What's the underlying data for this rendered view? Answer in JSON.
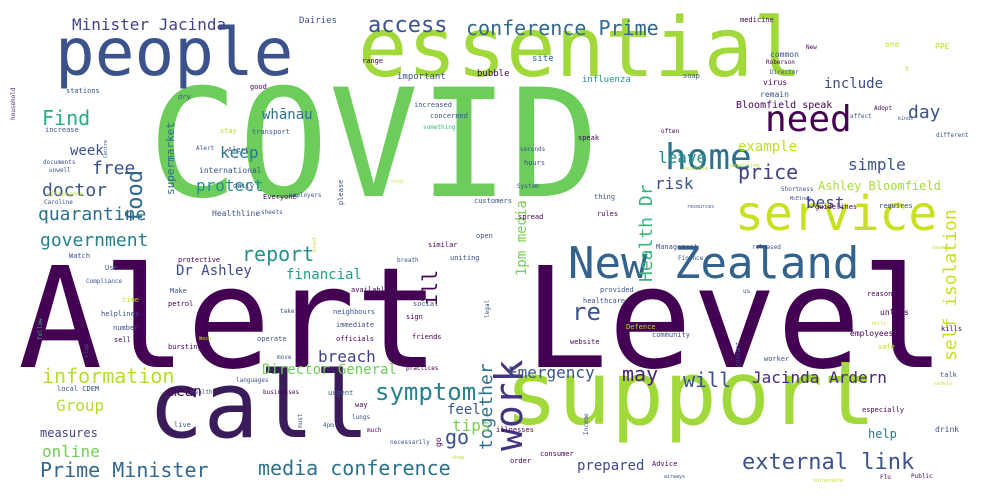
{
  "background": "#ffffff",
  "words": [
    {
      "text": "Alert Level",
      "color": "#440154",
      "rot": 0
    },
    {
      "text": "COVID",
      "color": "#6ccd5a",
      "rot": 0
    },
    {
      "text": "support",
      "color": "#a2d93a",
      "rot": 0
    },
    {
      "text": "essential",
      "color": "#a2d93a",
      "rot": 0
    },
    {
      "text": "call",
      "color": "#3b1c5a",
      "rot": 0
    },
    {
      "text": "people",
      "color": "#3b528b",
      "rot": 0
    },
    {
      "text": "New Zealand",
      "color": "#33638d",
      "rot": 0
    },
    {
      "text": "service",
      "color": "#c8e020",
      "rot": 0
    },
    {
      "text": "home",
      "color": "#2c728e",
      "rot": 0
    },
    {
      "text": "need",
      "color": "#440154",
      "rot": 0
    },
    {
      "text": "work",
      "color": "#46337e",
      "rot": -90
    },
    {
      "text": "symptom",
      "color": "#26828e",
      "rot": 0
    },
    {
      "text": "external link",
      "color": "#3b528b",
      "rot": 0
    },
    {
      "text": "media conference",
      "color": "#2c728e",
      "rot": 0
    },
    {
      "text": "Prime Minister",
      "color": "#31688e",
      "rot": 0
    },
    {
      "text": "information",
      "color": "#b5de2b",
      "rot": 0
    },
    {
      "text": "conference Prime",
      "color": "#31688e",
      "rot": 0
    },
    {
      "text": "access",
      "color": "#3b528b",
      "rot": 0
    },
    {
      "text": "Minister Jacinda",
      "color": "#414487",
      "rot": 0
    },
    {
      "text": "quarantine",
      "color": "#2c728e",
      "rot": 0
    },
    {
      "text": "government",
      "color": "#277f8e",
      "rot": 0
    },
    {
      "text": "doctor",
      "color": "#3b528b",
      "rot": 0
    },
    {
      "text": "Find",
      "color": "#27ad81",
      "rot": 0
    },
    {
      "text": "report",
      "color": "#21918c",
      "rot": 0
    },
    {
      "text": "price",
      "color": "#414487",
      "rot": 0
    },
    {
      "text": "free",
      "color": "#3b528b",
      "rot": 0
    },
    {
      "text": "food",
      "color": "#31688e",
      "rot": -90
    },
    {
      "text": "self isolation",
      "color": "#c8e020",
      "rot": -90
    },
    {
      "text": "Health Dr",
      "color": "#35b779",
      "rot": -90
    },
    {
      "text": "day",
      "color": "#3b528b",
      "rot": 0
    },
    {
      "text": "include",
      "color": "#3e4989",
      "rot": 0
    },
    {
      "text": "whānau",
      "color": "#2c728e",
      "rot": 0
    },
    {
      "text": "Bloomfield speak",
      "color": "#440154",
      "rot": 0
    },
    {
      "text": "keep",
      "color": "#2a788e",
      "rot": 0
    },
    {
      "text": "protect",
      "color": "#21918c",
      "rot": 0
    },
    {
      "text": "week",
      "color": "#3b528b",
      "rot": 0
    },
    {
      "text": "financial",
      "color": "#1fa187",
      "rot": 0
    },
    {
      "text": "Dr Ashley",
      "color": "#3e4a89",
      "rot": 0
    },
    {
      "text": "1pm media",
      "color": "#7ad151",
      "rot": -90
    },
    {
      "text": "leave",
      "color": "#21918c",
      "rot": 0
    },
    {
      "text": "risk",
      "color": "#3b528b",
      "rot": 0
    },
    {
      "text": "simple",
      "color": "#3b528b",
      "rot": 0
    },
    {
      "text": "example",
      "color": "#bddf26",
      "rot": 0
    },
    {
      "text": "best",
      "color": "#414487",
      "rot": 0
    },
    {
      "text": "Ashley Bloomfield",
      "color": "#a5db36",
      "rot": 0
    },
    {
      "text": "breach",
      "color": "#414487",
      "rot": 0
    },
    {
      "text": "together",
      "color": "#2c728e",
      "rot": -90
    },
    {
      "text": "re",
      "color": "#3b528b",
      "rot": 0
    },
    {
      "text": "ill",
      "color": "#440154",
      "rot": -90
    },
    {
      "text": "Director General",
      "color": "#6ece58",
      "rot": 0
    },
    {
      "text": "Emergency",
      "color": "#3b528b",
      "rot": 0
    },
    {
      "text": "may",
      "color": "#482173",
      "rot": 0
    },
    {
      "text": "will",
      "color": "#3b528b",
      "rot": 0
    },
    {
      "text": "Jacinda Ardern",
      "color": "#482878",
      "rot": 0
    },
    {
      "text": "Group",
      "color": "#b5de2b",
      "rot": 0
    },
    {
      "text": "mean",
      "color": "#440154",
      "rot": 0
    },
    {
      "text": "tips",
      "color": "#7ad151",
      "rot": 0
    },
    {
      "text": "feel",
      "color": "#3b528b",
      "rot": 0
    },
    {
      "text": "go",
      "color": "#3b528b",
      "rot": 0
    },
    {
      "text": "help",
      "color": "#2a788e",
      "rot": 0
    },
    {
      "text": "measures",
      "color": "#414487",
      "rot": 0
    },
    {
      "text": "online",
      "color": "#6ece58",
      "rot": 0
    },
    {
      "text": "prepared",
      "color": "#3e4a89",
      "rot": 0
    },
    {
      "text": "supermarket",
      "color": "#31688e",
      "rot": -90
    },
    {
      "text": "Alert",
      "color": "#3b528b",
      "rot": 0
    },
    {
      "text": "Dairies",
      "color": "#3b528b",
      "rot": 0
    },
    {
      "text": "range",
      "color": "#440154",
      "rot": 0
    },
    {
      "text": "site",
      "color": "#31688e",
      "rot": 0
    },
    {
      "text": "important",
      "color": "#3b528b",
      "rot": 0
    },
    {
      "text": "bubble",
      "color": "#440154",
      "rot": 0
    },
    {
      "text": "influenza",
      "color": "#21918c",
      "rot": 0
    },
    {
      "text": "soap",
      "color": "#3b528b",
      "rot": 0
    },
    {
      "text": "medicine",
      "color": "#440154",
      "rot": 0
    },
    {
      "text": "common",
      "color": "#3b528b",
      "rot": 0
    },
    {
      "text": "Roberson",
      "color": "#440154",
      "rot": 0
    },
    {
      "text": "New",
      "color": "#440154",
      "rot": 0
    },
    {
      "text": "Director",
      "color": "#3b528b",
      "rot": 0
    },
    {
      "text": "remain",
      "color": "#3b528b",
      "rot": 0
    },
    {
      "text": "virus",
      "color": "#440154",
      "rot": 0
    },
    {
      "text": "one",
      "color": "#bddf26",
      "rot": 0
    },
    {
      "text": "PPE",
      "color": "#bddf26",
      "rot": 0
    },
    {
      "text": "household",
      "color": "#482878",
      "rot": -90
    },
    {
      "text": "stations",
      "color": "#3b528b",
      "rot": 0
    },
    {
      "text": "dry",
      "color": "#3b528b",
      "rot": 0
    },
    {
      "text": "good",
      "color": "#440154",
      "rot": 0
    },
    {
      "text": "increase",
      "color": "#3b528b",
      "rot": 0
    },
    {
      "text": "increased",
      "color": "#3b528b",
      "rot": 0
    },
    {
      "text": "concerned",
      "color": "#3b528b",
      "rot": 0
    },
    {
      "text": "something",
      "color": "#35b779",
      "rot": 0
    },
    {
      "text": "transport",
      "color": "#3b528b",
      "rot": 0
    },
    {
      "text": "stay",
      "color": "#bddf26",
      "rot": 0
    },
    {
      "text": "documents",
      "color": "#3b528b",
      "rot": 0
    },
    {
      "text": "Alert",
      "color": "#3b528b",
      "rot": 0
    },
    {
      "text": "international",
      "color": "#3b528b",
      "rot": 0
    },
    {
      "text": "please",
      "color": "#3b528b",
      "rot": -90
    },
    {
      "text": "daily",
      "color": "#3b528b",
      "rot": 0
    },
    {
      "text": "Everyone",
      "color": "#440154",
      "rot": 0
    },
    {
      "text": "employers",
      "color": "#3b528b",
      "rot": 0
    },
    {
      "text": "Healthline",
      "color": "#3b528b",
      "rot": 0
    },
    {
      "text": "sheets",
      "color": "#3b528b",
      "rot": 0
    },
    {
      "text": "unwell",
      "color": "#3b528b",
      "rot": 0
    },
    {
      "text": "difference",
      "color": "#bddf26",
      "rot": 0
    },
    {
      "text": "Caroline",
      "color": "#3b528b",
      "rot": 0
    },
    {
      "text": "protective",
      "color": "#440154",
      "rot": 0
    },
    {
      "text": "Watch",
      "color": "#3b528b",
      "rot": 0
    },
    {
      "text": "Use",
      "color": "#3b528b",
      "rot": 0
    },
    {
      "text": "Compliance",
      "color": "#3b528b",
      "rot": 0
    },
    {
      "text": "follow",
      "color": "#35b779",
      "rot": -90
    },
    {
      "text": "Make",
      "color": "#3b528b",
      "rot": 0
    },
    {
      "text": "petrol",
      "color": "#440154",
      "rot": 0
    },
    {
      "text": "time",
      "color": "#bddf26",
      "rot": 0
    },
    {
      "text": "helplines",
      "color": "#3b528b",
      "rot": 0
    },
    {
      "text": "number",
      "color": "#3b528b",
      "rot": 0
    },
    {
      "text": "sell",
      "color": "#440154",
      "rot": 0
    },
    {
      "text": "stop",
      "color": "#3b528b",
      "rot": -90
    },
    {
      "text": "bursting",
      "color": "#440154",
      "rot": 0
    },
    {
      "text": "operate",
      "color": "#3b528b",
      "rot": 0
    },
    {
      "text": "officials",
      "color": "#440154",
      "rot": 0
    },
    {
      "text": "neighbours",
      "color": "#3b528b",
      "rot": 0
    },
    {
      "text": "immediate",
      "color": "#3b528b",
      "rot": 0
    },
    {
      "text": "friends",
      "color": "#440154",
      "rot": 0
    },
    {
      "text": "available",
      "color": "#440154",
      "rot": 0
    },
    {
      "text": "take",
      "color": "#3b528b",
      "rot": 0
    },
    {
      "text": "move",
      "color": "#3b528b",
      "rot": 0
    },
    {
      "text": "languages",
      "color": "#3b528b",
      "rot": 0
    },
    {
      "text": "businesses",
      "color": "#440154",
      "rot": 0
    },
    {
      "text": "Health",
      "color": "#3b528b",
      "rot": 0
    },
    {
      "text": "local CDEM",
      "color": "#3b528b",
      "rot": 0
    },
    {
      "text": "live",
      "color": "#3b528b",
      "rot": 0
    },
    {
      "text": "way",
      "color": "#440154",
      "rot": 0
    },
    {
      "text": "urgent",
      "color": "#3b528b",
      "rot": 0
    },
    {
      "text": "must",
      "color": "#3b528b",
      "rot": -90
    },
    {
      "text": "4pm",
      "color": "#3b528b",
      "rot": 0
    },
    {
      "text": "lungs",
      "color": "#3b528b",
      "rot": 0
    },
    {
      "text": "much",
      "color": "#440154",
      "rot": 0
    },
    {
      "text": "necessarily",
      "color": "#3b528b",
      "rot": 0
    },
    {
      "text": "illnesses",
      "color": "#440154",
      "rot": 0
    },
    {
      "text": "Income",
      "color": "#3b528b",
      "rot": -90
    },
    {
      "text": "order",
      "color": "#440154",
      "rot": 0
    },
    {
      "text": "consumer",
      "color": "#440154",
      "rot": 0
    },
    {
      "text": "sign",
      "color": "#440154",
      "rot": 0
    },
    {
      "text": "social",
      "color": "#3b528b",
      "rot": 0
    },
    {
      "text": "legal",
      "color": "#3b528b",
      "rot": -90
    },
    {
      "text": "similar",
      "color": "#440154",
      "rot": 0
    },
    {
      "text": "uniting",
      "color": "#3b528b",
      "rot": 0
    },
    {
      "text": "open",
      "color": "#3b528b",
      "rot": 0
    },
    {
      "text": "customers",
      "color": "#3b528b",
      "rot": 0
    },
    {
      "text": "spread",
      "color": "#440154",
      "rot": 0
    },
    {
      "text": "thing",
      "color": "#3b528b",
      "rot": 0
    },
    {
      "text": "rules",
      "color": "#440154",
      "rot": 0
    },
    {
      "text": "hours",
      "color": "#3b528b",
      "rot": 0
    },
    {
      "text": "seconds",
      "color": "#3b528b",
      "rot": 0
    },
    {
      "text": "System",
      "color": "#3b528b",
      "rot": 0
    },
    {
      "text": "speak",
      "color": "#440154",
      "rot": 0
    },
    {
      "text": "Management",
      "color": "#3b528b",
      "rot": 0
    },
    {
      "text": "Finance",
      "color": "#3b528b",
      "rot": 0
    },
    {
      "text": "provided",
      "color": "#3b528b",
      "rot": 0
    },
    {
      "text": "healthcare",
      "color": "#3b528b",
      "rot": 0
    },
    {
      "text": "Defence",
      "color": "#bddf26",
      "rot": 0
    },
    {
      "text": "website",
      "color": "#440154",
      "rot": 0
    },
    {
      "text": "community",
      "color": "#3b528b",
      "rot": 0
    },
    {
      "text": "contact",
      "color": "#3b528b",
      "rot": -90
    },
    {
      "text": "worker",
      "color": "#3b528b",
      "rot": 0
    },
    {
      "text": "Advice",
      "color": "#440154",
      "rot": 0
    },
    {
      "text": "released",
      "color": "#3b528b",
      "rot": 0
    },
    {
      "text": "reason",
      "color": "#440154",
      "rot": 0
    },
    {
      "text": "unless",
      "color": "#440154",
      "rot": 0
    },
    {
      "text": "employees",
      "color": "#440154",
      "rot": 0
    },
    {
      "text": "safe",
      "color": "#bddf26",
      "rot": 0
    },
    {
      "text": "drink",
      "color": "#3b528b",
      "rot": 0
    },
    {
      "text": "talk",
      "color": "#3b528b",
      "rot": 0
    },
    {
      "text": "especially",
      "color": "#440154",
      "rot": 0
    },
    {
      "text": "kills",
      "color": "#440154",
      "rot": 0
    },
    {
      "text": "Public",
      "color": "#440154",
      "rot": 0
    },
    {
      "text": "Flu",
      "color": "#440154",
      "rot": 0
    },
    {
      "text": "vulnerable",
      "color": "#bddf26",
      "rot": 0
    },
    {
      "text": "airways",
      "color": "#3b528b",
      "rot": 0
    },
    {
      "text": "Grant",
      "color": "#bddf26",
      "rot": -90
    },
    {
      "text": "often",
      "color": "#440154",
      "rot": 0
    },
    {
      "text": "possible",
      "color": "#bddf26",
      "rot": 0
    },
    {
      "text": "Shortness",
      "color": "#3b528b",
      "rot": 0
    },
    {
      "text": "McElnay",
      "color": "#3b528b",
      "rot": 0
    },
    {
      "text": "resources",
      "color": "#3b528b",
      "rot": 0
    },
    {
      "text": "guidelines",
      "color": "#440154",
      "rot": 0
    },
    {
      "text": "requires",
      "color": "#3b528b",
      "rot": 0
    },
    {
      "text": "supporting",
      "color": "#bddf26",
      "rot": 0
    },
    {
      "text": "kinds",
      "color": "#3b528b",
      "rot": 0
    },
    {
      "text": "Adopt",
      "color": "#440154",
      "rot": 0
    },
    {
      "text": "affect",
      "color": "#3b528b",
      "rot": 0
    },
    {
      "text": "different",
      "color": "#3b528b",
      "rot": 0
    },
    {
      "text": "Centre",
      "color": "#3b528b",
      "rot": -90
    },
    {
      "text": "cold",
      "color": "#bddf26",
      "rot": 0
    },
    {
      "text": "Wash",
      "color": "#bddf26",
      "rot": 0
    },
    {
      "text": "breath",
      "color": "#3b528b",
      "rot": 0
    },
    {
      "text": "practices",
      "color": "#440154",
      "rot": 0
    },
    {
      "text": "shop",
      "color": "#bddf26",
      "rot": 0
    },
    {
      "text": "us",
      "color": "#3b528b",
      "rot": 0
    },
    {
      "text": "tells",
      "color": "#bddf26",
      "rot": 0
    },
    {
      "text": "level",
      "color": "#bddf26",
      "rot": 0
    },
    {
      "text": "safely",
      "color": "#bddf26",
      "rot": 0
    },
    {
      "text": "t",
      "color": "#bddf26",
      "rot": 0
    },
    {
      "text": "go",
      "color": "#440154",
      "rot": -90
    }
  ]
}
